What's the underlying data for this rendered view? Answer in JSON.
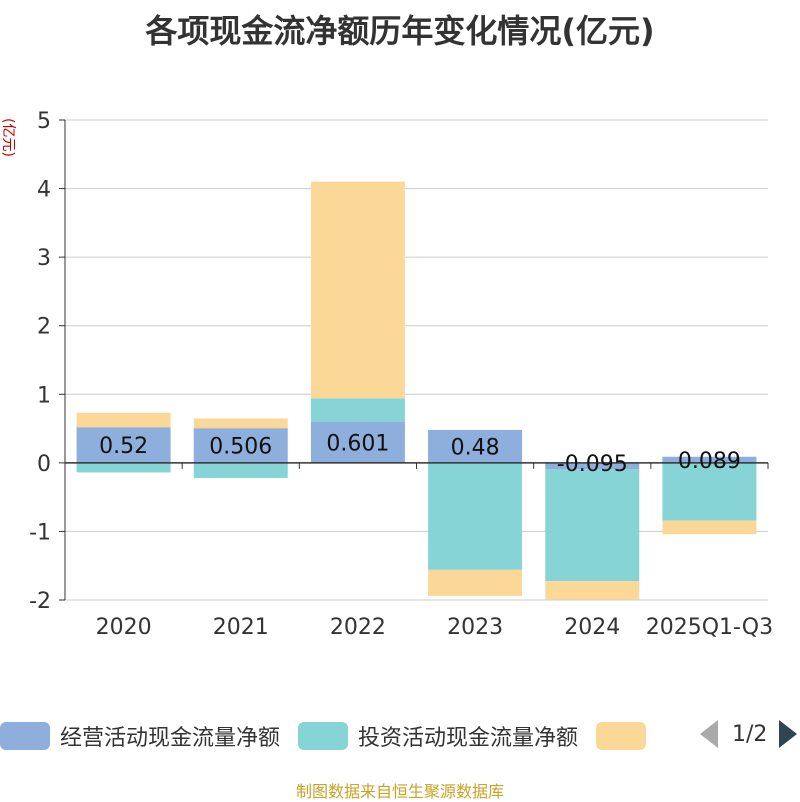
{
  "chart_data": {
    "type": "bar",
    "stacked": true,
    "title": "各项现金流净额历年变化情况(亿元)",
    "ylabel": "(亿元)",
    "ylim": [
      -2,
      5
    ],
    "yticks": [
      5,
      4,
      3,
      2,
      1,
      0,
      -1,
      -2
    ],
    "categories": [
      "2020",
      "2021",
      "2022",
      "2023",
      "2024",
      "2025Q1-Q3"
    ],
    "series": [
      {
        "name": "经营活动现金流量净额",
        "color": "#8eaedc",
        "values": [
          0.52,
          0.506,
          0.601,
          0.48,
          -0.095,
          0.089
        ],
        "labels": [
          "0.52",
          "0.506",
          "0.601",
          "0.48",
          "-0.095",
          "0.089"
        ]
      },
      {
        "name": "投资活动现金流量净额",
        "color": "#86d4d6",
        "values": [
          -0.14,
          -0.22,
          0.34,
          -1.56,
          -1.63,
          -0.84
        ]
      },
      {
        "name": "",
        "color": "#fcd898",
        "values": [
          0.21,
          0.14,
          3.16,
          -0.38,
          -0.27,
          -0.2
        ]
      }
    ]
  },
  "legend": {
    "items": [
      {
        "label": "经营活动现金流量净额",
        "color": "#8eaedc"
      },
      {
        "label": "投资活动现金流量净额",
        "color": "#86d4d6"
      },
      {
        "label": "",
        "color": "#fcd898"
      }
    ],
    "page": "1/2"
  },
  "source": "制图数据来自恒生聚源数据库"
}
